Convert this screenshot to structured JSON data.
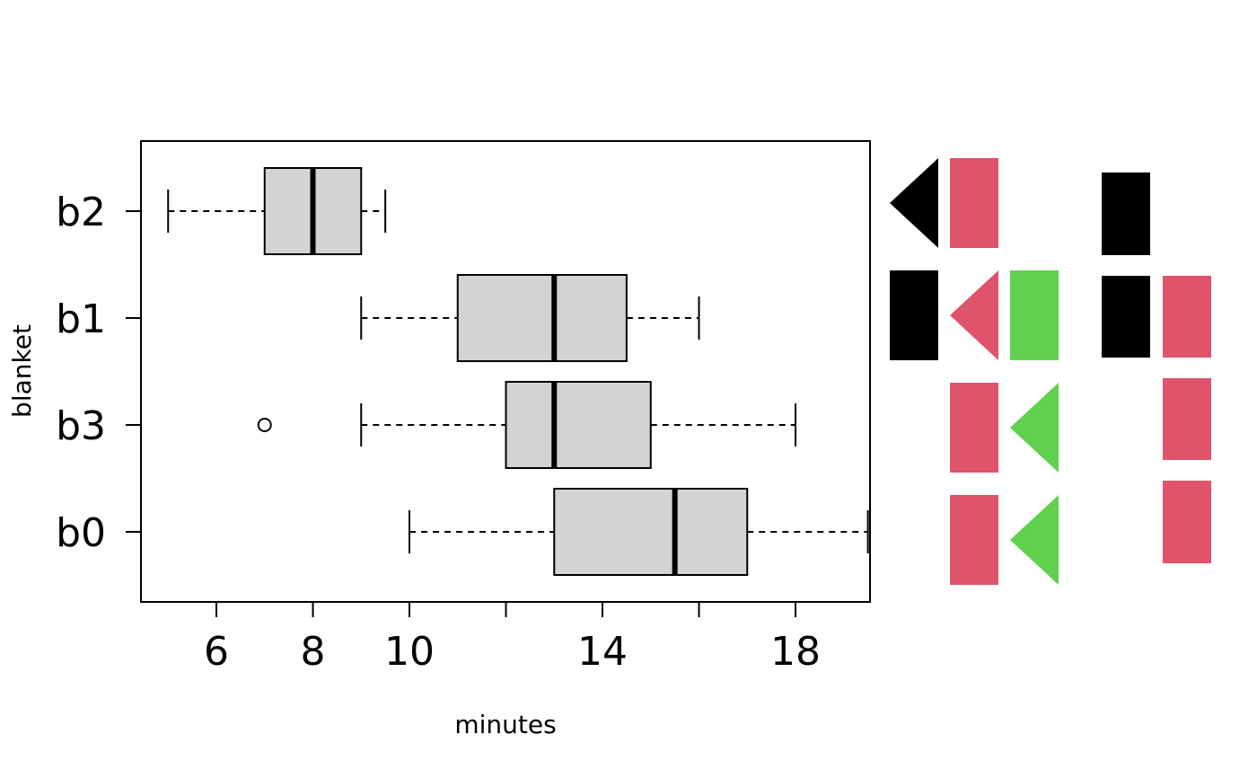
{
  "chart_data": {
    "type": "box",
    "orientation": "horizontal",
    "title": "",
    "xlabel": "minutes",
    "ylabel": "blanket",
    "xlim": [
      4.5,
      19.6
    ],
    "x_ticks": [
      6,
      8,
      10,
      12,
      14,
      16,
      18
    ],
    "x_tick_labels": [
      "6",
      "8",
      "10",
      "",
      "14",
      "",
      "18"
    ],
    "categories": [
      "b0",
      "b3",
      "b1",
      "b2"
    ],
    "box_fill": "#d3d3d3",
    "series": [
      {
        "category": "b0",
        "whisker_low": 10,
        "q1": 13,
        "median": 15.5,
        "q3": 17,
        "whisker_high": 19.5,
        "outliers": []
      },
      {
        "category": "b3",
        "whisker_low": 9,
        "q1": 12,
        "median": 13,
        "q3": 15,
        "whisker_high": 18,
        "outliers": [
          7
        ]
      },
      {
        "category": "b1",
        "whisker_low": 9,
        "q1": 11,
        "median": 13,
        "q3": 14.5,
        "whisker_high": 16,
        "outliers": []
      },
      {
        "category": "b2",
        "whisker_low": 5,
        "q1": 7,
        "median": 8,
        "q3": 9,
        "whisker_high": 9.5,
        "outliers": []
      }
    ],
    "side_glyphs": {
      "colors": {
        "black": "#000000",
        "red": "#df536b",
        "green": "#61d04f"
      },
      "rows": [
        {
          "category": "b2",
          "cells": [
            "black-triangle",
            "red-rect",
            "none",
            "black-rect",
            "none"
          ]
        },
        {
          "category": "b1",
          "cells": [
            "black-rect",
            "red-triangle",
            "green-rect",
            "black-rect",
            "red-rect"
          ]
        },
        {
          "category": "b3",
          "cells": [
            "none",
            "red-rect",
            "green-triangle",
            "none",
            "red-rect"
          ]
        },
        {
          "category": "b0",
          "cells": [
            "none",
            "red-rect",
            "green-triangle",
            "none",
            "red-rect"
          ]
        }
      ]
    }
  }
}
